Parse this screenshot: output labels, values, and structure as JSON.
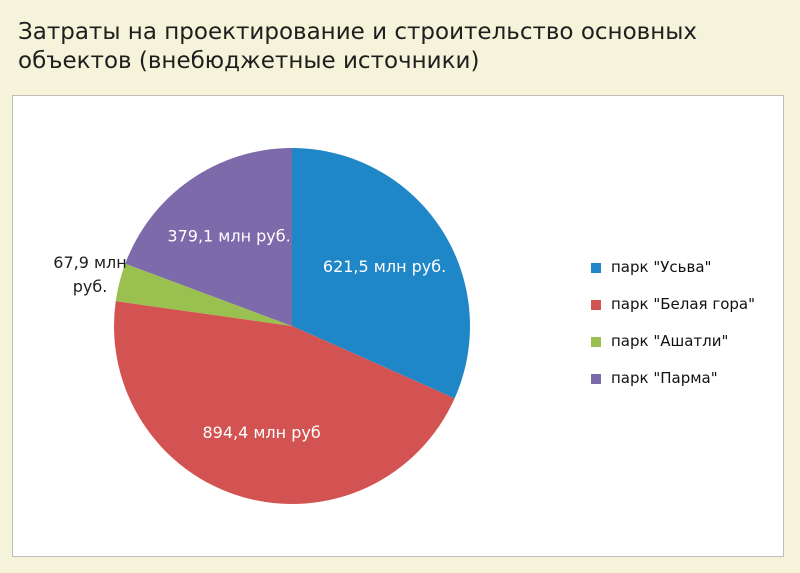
{
  "title": "Затраты на проектирование и строительство основных объектов (внебюджетные источники)",
  "chart_data": {
    "type": "pie",
    "categories": [
      "парк \"Усьва\"",
      "парк \"Белая гора\"",
      "парк \"Ашатли\"",
      "парк \"Парма\""
    ],
    "values": [
      621.5,
      894.4,
      67.9,
      379.1
    ],
    "data_labels": [
      "621,5 млн руб.",
      "894,4 млн руб",
      "67,9 млн руб.",
      "379,1 млн руб."
    ],
    "colors": [
      "#1f87c7",
      "#d35352",
      "#9ac050",
      "#7d6aab"
    ],
    "legend_position": "right"
  }
}
